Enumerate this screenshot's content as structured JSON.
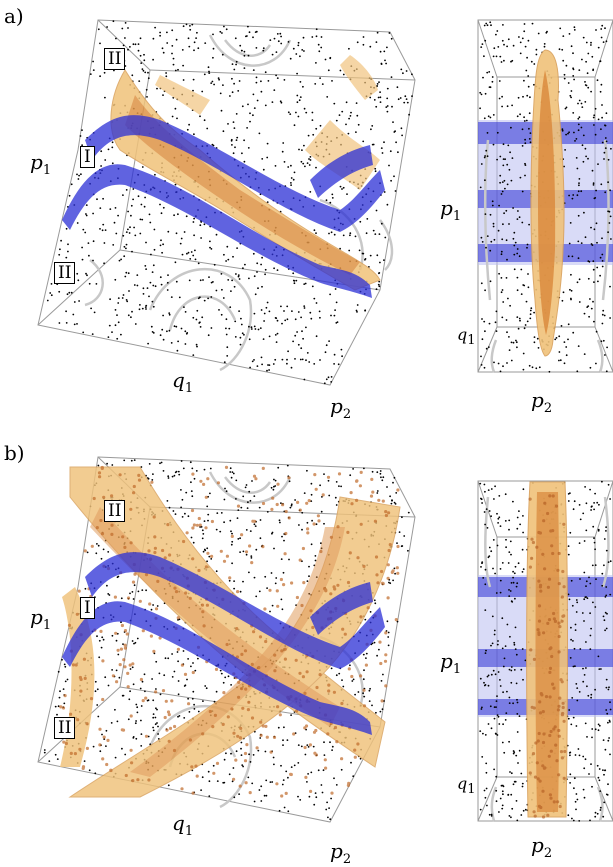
{
  "panels": [
    {
      "tag": "a)",
      "regions": {
        "upper": "II",
        "middle": "I",
        "lower": "II"
      },
      "left_axes": {
        "vertical": "p",
        "vertical_sub": "1",
        "horizontal": "q",
        "horizontal_sub": "1",
        "depth": "p",
        "depth_sub": "2"
      },
      "right_axes": {
        "vertical": "p",
        "vertical_sub": "1",
        "depth": "q",
        "depth_sub": "1",
        "horizontal": "p",
        "horizontal_sub": "2"
      }
    },
    {
      "tag": "b)",
      "regions": {
        "upper": "II",
        "middle": "I",
        "lower": "II"
      },
      "left_axes": {
        "vertical": "p",
        "vertical_sub": "1",
        "horizontal": "q",
        "horizontal_sub": "1",
        "depth": "p",
        "depth_sub": "2"
      },
      "right_axes": {
        "vertical": "p",
        "vertical_sub": "1",
        "depth": "q",
        "depth_sub": "1",
        "horizontal": "p",
        "horizontal_sub": "2"
      }
    }
  ],
  "colors": {
    "tube": "#d9873a",
    "tube_halo": "#f0c27a",
    "plane": "#2b2fd6",
    "plane_light": "#b9bdf0",
    "contour": "#c8c8c8",
    "points": "#000000",
    "box": "#9a9a9a"
  }
}
